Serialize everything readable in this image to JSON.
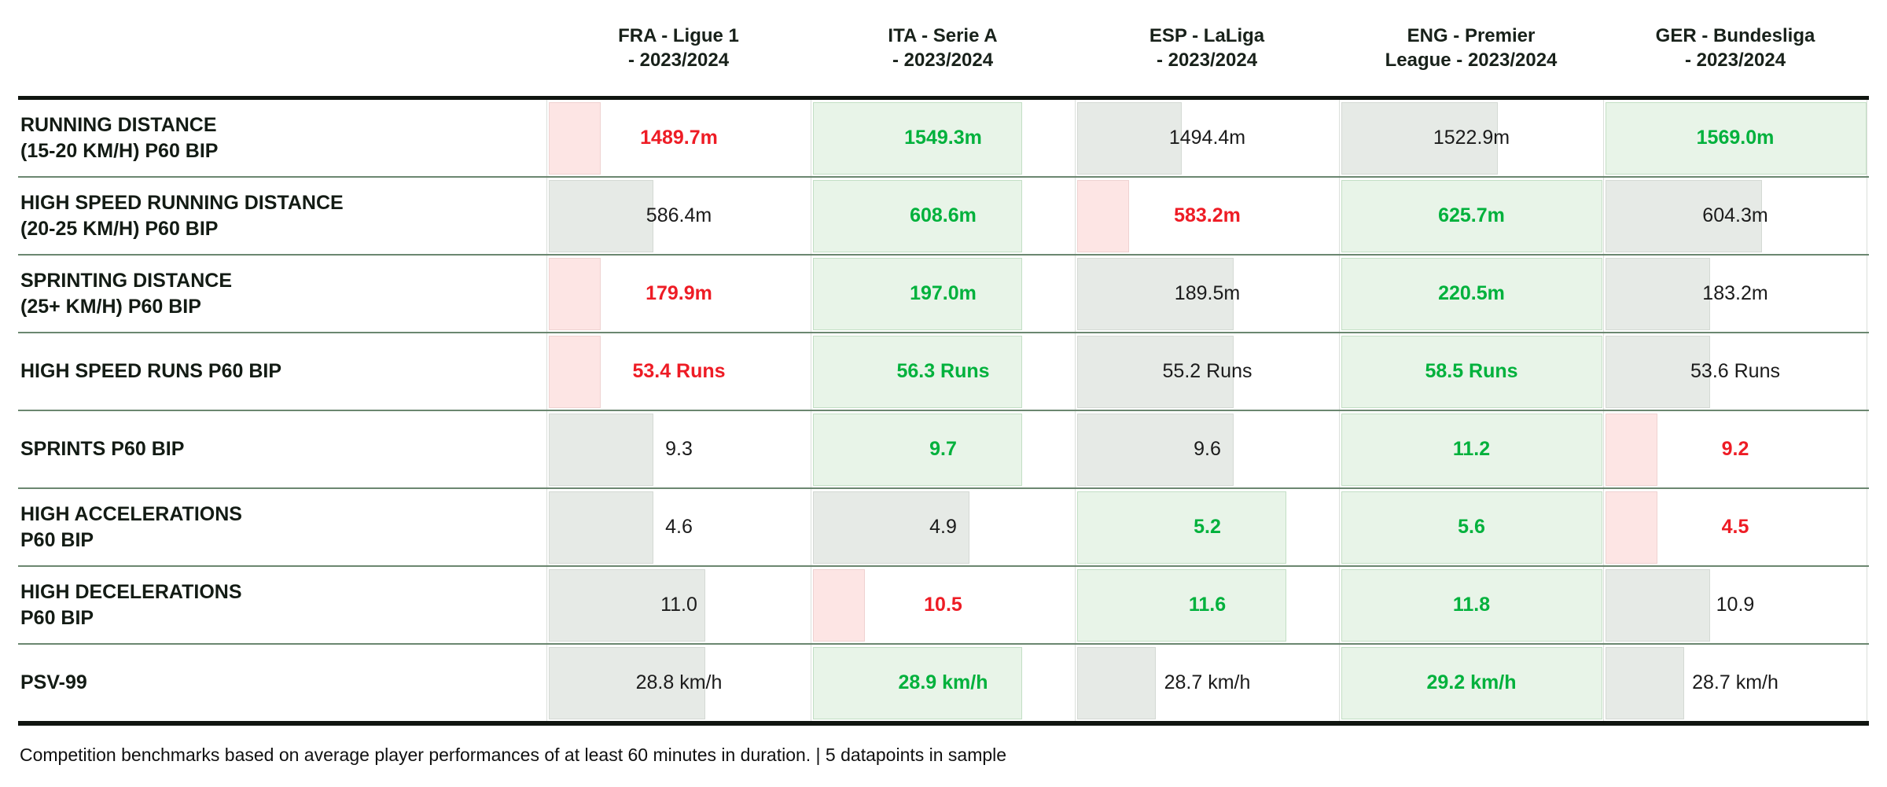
{
  "colors": {
    "text_green": "#00B13C",
    "text_red": "#EE1C25",
    "text_black": "#1B1B1B",
    "bar_green": "#E8F4E8",
    "bar_green_border": "#C3DFC5",
    "bar_gray": "#E6EAE6",
    "bar_gray_border": "#D4D9D4",
    "bar_pink": "#FDE5E4",
    "bar_pink_border": "#EFD2D1",
    "separator": "#6B8770",
    "heavy_rule": "#101510"
  },
  "footer": {
    "note": "Competition benchmarks based on average player performances of at least 60 minutes in duration. | 5 datapoints in sample"
  },
  "chart_data": {
    "type": "table",
    "title": "Competition physical benchmarks 2023/2024",
    "legend_position": "none",
    "grid": "row-separators",
    "columns": [
      {
        "key": "fra",
        "header_lines": [
          "FRA - Ligue 1",
          "- 2023/2024"
        ]
      },
      {
        "key": "ita",
        "header_lines": [
          "ITA - Serie A",
          "- 2023/2024"
        ]
      },
      {
        "key": "esp",
        "header_lines": [
          "ESP - LaLiga",
          "- 2023/2024"
        ]
      },
      {
        "key": "eng",
        "header_lines": [
          "ENG - Premier",
          "League - 2023/2024"
        ]
      },
      {
        "key": "ger",
        "header_lines": [
          "GER - Bundesliga",
          "- 2023/2024"
        ]
      }
    ],
    "rows": [
      {
        "metric_lines": [
          "RUNNING DISTANCE",
          "(15-20 KM/H) P60 BIP"
        ],
        "unit": "m",
        "values": [
          1489.7,
          1549.3,
          1494.4,
          1522.9,
          1569.0
        ],
        "display": [
          "1489.7m",
          "1549.3m",
          "1494.4m",
          "1522.9m",
          "1569.0m"
        ],
        "text_colors": [
          "red",
          "green",
          "black",
          "black",
          "green"
        ],
        "bar_colors": [
          "pink",
          "green",
          "gray",
          "gray",
          "green"
        ],
        "bar_fractions": [
          0.2,
          0.8,
          0.4,
          0.6,
          1.0
        ]
      },
      {
        "metric_lines": [
          "HIGH SPEED RUNNING DISTANCE",
          "(20-25 KM/H) P60 BIP"
        ],
        "unit": "m",
        "values": [
          586.4,
          608.6,
          583.2,
          625.7,
          604.3
        ],
        "display": [
          "586.4m",
          "608.6m",
          "583.2m",
          "625.7m",
          "604.3m"
        ],
        "text_colors": [
          "black",
          "green",
          "red",
          "green",
          "black"
        ],
        "bar_colors": [
          "gray",
          "green",
          "pink",
          "green",
          "gray"
        ],
        "bar_fractions": [
          0.4,
          0.8,
          0.2,
          1.0,
          0.6
        ]
      },
      {
        "metric_lines": [
          "SPRINTING DISTANCE",
          "(25+ KM/H) P60 BIP"
        ],
        "unit": "m",
        "values": [
          179.9,
          197.0,
          189.5,
          220.5,
          183.2
        ],
        "display": [
          "179.9m",
          "197.0m",
          "189.5m",
          "220.5m",
          "183.2m"
        ],
        "text_colors": [
          "red",
          "green",
          "black",
          "green",
          "black"
        ],
        "bar_colors": [
          "pink",
          "green",
          "gray",
          "green",
          "gray"
        ],
        "bar_fractions": [
          0.2,
          0.8,
          0.6,
          1.0,
          0.4
        ]
      },
      {
        "metric_lines": [
          "HIGH SPEED RUNS P60 BIP"
        ],
        "unit": "Runs",
        "values": [
          53.4,
          56.3,
          55.2,
          58.5,
          53.6
        ],
        "display": [
          "53.4 Runs",
          "56.3 Runs",
          "55.2 Runs",
          "58.5 Runs",
          "53.6 Runs"
        ],
        "text_colors": [
          "red",
          "green",
          "black",
          "green",
          "black"
        ],
        "bar_colors": [
          "pink",
          "green",
          "gray",
          "green",
          "gray"
        ],
        "bar_fractions": [
          0.2,
          0.8,
          0.6,
          1.0,
          0.4
        ]
      },
      {
        "metric_lines": [
          "SPRINTS P60 BIP"
        ],
        "unit": "",
        "values": [
          9.3,
          9.7,
          9.6,
          11.2,
          9.2
        ],
        "display": [
          "9.3",
          "9.7",
          "9.6",
          "11.2",
          "9.2"
        ],
        "text_colors": [
          "black",
          "green",
          "black",
          "green",
          "red"
        ],
        "bar_colors": [
          "gray",
          "green",
          "gray",
          "green",
          "pink"
        ],
        "bar_fractions": [
          0.4,
          0.8,
          0.6,
          1.0,
          0.2
        ]
      },
      {
        "metric_lines": [
          "HIGH ACCELERATIONS",
          "P60 BIP"
        ],
        "unit": "",
        "values": [
          4.6,
          4.9,
          5.2,
          5.6,
          4.5
        ],
        "display": [
          "4.6",
          "4.9",
          "5.2",
          "5.6",
          "4.5"
        ],
        "text_colors": [
          "black",
          "black",
          "green",
          "green",
          "red"
        ],
        "bar_colors": [
          "gray",
          "gray",
          "green",
          "green",
          "pink"
        ],
        "bar_fractions": [
          0.4,
          0.6,
          0.8,
          1.0,
          0.2
        ]
      },
      {
        "metric_lines": [
          "HIGH DECELERATIONS",
          "P60 BIP"
        ],
        "unit": "",
        "values": [
          11.0,
          10.5,
          11.6,
          11.8,
          10.9
        ],
        "display": [
          "11.0",
          "10.5",
          "11.6",
          "11.8",
          "10.9"
        ],
        "text_colors": [
          "black",
          "red",
          "green",
          "green",
          "black"
        ],
        "bar_colors": [
          "gray",
          "pink",
          "green",
          "green",
          "gray"
        ],
        "bar_fractions": [
          0.6,
          0.2,
          0.8,
          1.0,
          0.4
        ]
      },
      {
        "metric_lines": [
          "PSV-99"
        ],
        "unit": "km/h",
        "values": [
          28.8,
          28.9,
          28.7,
          29.2,
          28.7
        ],
        "display": [
          "28.8 km/h",
          "28.9 km/h",
          "28.7 km/h",
          "29.2 km/h",
          "28.7 km/h"
        ],
        "text_colors": [
          "black",
          "green",
          "black",
          "green",
          "black"
        ],
        "bar_colors": [
          "gray",
          "green",
          "gray",
          "green",
          "gray"
        ],
        "bar_fractions": [
          0.6,
          0.8,
          0.3,
          1.0,
          0.3
        ]
      }
    ]
  }
}
